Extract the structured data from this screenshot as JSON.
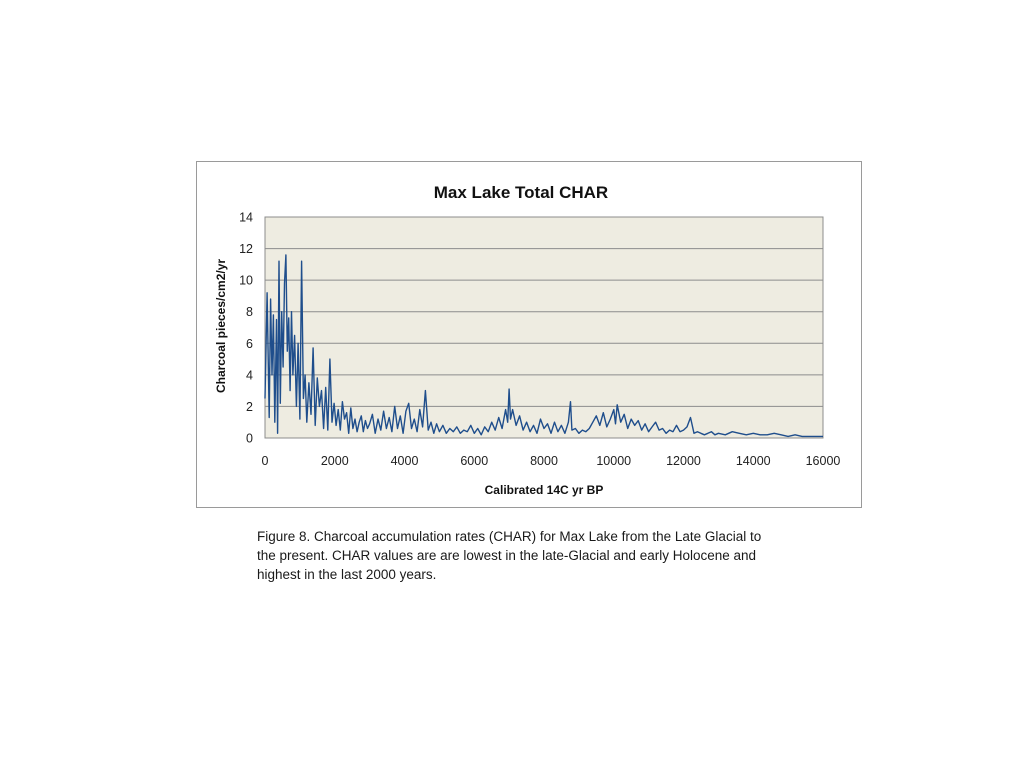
{
  "chart_data": {
    "type": "line",
    "title": "Max Lake Total CHAR",
    "xlabel": "Calibrated 14C yr BP",
    "ylabel": "Charcoal pieces/cm2/yr",
    "xlim": [
      0,
      16000
    ],
    "ylim": [
      0,
      14
    ],
    "xticks": [
      "0",
      "2000",
      "4000",
      "6000",
      "8000",
      "10000",
      "12000",
      "14000",
      "16000"
    ],
    "yticks": [
      "0",
      "2",
      "4",
      "6",
      "8",
      "10",
      "12",
      "14"
    ],
    "grid": "horizontal",
    "legend": "none",
    "colors": {
      "line": "#1f4e8c",
      "plot_bg": "#eeece1",
      "grid": "#8c8c8c"
    },
    "series": [
      {
        "x": [
          0,
          60,
          120,
          160,
          200,
          240,
          280,
          330,
          360,
          400,
          440,
          480,
          520,
          560,
          600,
          640,
          680,
          720,
          760,
          800,
          850,
          900,
          950,
          1000,
          1050,
          1100,
          1150,
          1200,
          1260,
          1320,
          1380,
          1440,
          1500,
          1560,
          1620,
          1680,
          1740,
          1800,
          1860,
          1920,
          1980,
          2040,
          2100,
          2160,
          2220,
          2280,
          2340,
          2400,
          2460,
          2520,
          2580,
          2640,
          2700,
          2760,
          2820,
          2880,
          2940,
          3000,
          3080,
          3160,
          3240,
          3320,
          3400,
          3480,
          3560,
          3640,
          3720,
          3800,
          3880,
          3960,
          4040,
          4120,
          4200,
          4280,
          4360,
          4440,
          4520,
          4600,
          4680,
          4760,
          4840,
          4920,
          5000,
          5100,
          5200,
          5300,
          5400,
          5500,
          5600,
          5700,
          5800,
          5900,
          6000,
          6100,
          6200,
          6300,
          6400,
          6500,
          6600,
          6700,
          6800,
          6900,
          6960,
          7000,
          7040,
          7100,
          7200,
          7300,
          7400,
          7500,
          7600,
          7700,
          7800,
          7900,
          8000,
          8100,
          8200,
          8300,
          8400,
          8500,
          8600,
          8700,
          8760,
          8800,
          8900,
          9000,
          9100,
          9200,
          9300,
          9400,
          9500,
          9600,
          9700,
          9800,
          9900,
          10000,
          10050,
          10100,
          10200,
          10300,
          10400,
          10500,
          10600,
          10700,
          10800,
          10900,
          11000,
          11100,
          11200,
          11300,
          11400,
          11500,
          11600,
          11700,
          11800,
          11900,
          12000,
          12100,
          12200,
          12300,
          12400,
          12500,
          12600,
          12700,
          12800,
          12900,
          13000,
          13200,
          13400,
          13600,
          13800,
          14000,
          14200,
          14400,
          14600,
          14800,
          15000,
          15200,
          15400,
          15600,
          15800,
          16000
        ],
        "values": [
          2.5,
          9.2,
          1.3,
          8.8,
          4.0,
          7.8,
          1.0,
          7.5,
          0.3,
          11.2,
          2.2,
          8.0,
          4.5,
          9.8,
          11.6,
          5.5,
          7.6,
          3.0,
          8.0,
          4.0,
          6.5,
          2.0,
          6.0,
          1.2,
          11.2,
          2.5,
          4.0,
          1.0,
          3.5,
          1.5,
          5.7,
          0.8,
          3.8,
          2.0,
          3.0,
          0.6,
          3.2,
          0.5,
          5.0,
          1.0,
          2.2,
          0.8,
          1.8,
          0.5,
          2.3,
          1.2,
          1.6,
          0.3,
          1.9,
          0.6,
          1.2,
          0.4,
          1.0,
          1.4,
          0.4,
          1.1,
          0.6,
          0.9,
          1.5,
          0.3,
          1.2,
          0.5,
          1.7,
          0.6,
          1.3,
          0.4,
          2.0,
          0.6,
          1.4,
          0.3,
          1.7,
          2.2,
          0.6,
          1.2,
          0.4,
          1.8,
          0.7,
          3.0,
          0.5,
          1.0,
          0.3,
          0.9,
          0.4,
          0.8,
          0.3,
          0.6,
          0.4,
          0.7,
          0.3,
          0.5,
          0.4,
          0.8,
          0.3,
          0.6,
          0.2,
          0.7,
          0.4,
          1.0,
          0.5,
          1.3,
          0.6,
          1.8,
          1.0,
          3.1,
          1.2,
          1.8,
          0.8,
          1.4,
          0.5,
          1.0,
          0.4,
          0.8,
          0.3,
          1.2,
          0.6,
          0.9,
          0.3,
          1.0,
          0.4,
          0.8,
          0.3,
          1.0,
          2.3,
          0.5,
          0.6,
          0.3,
          0.5,
          0.4,
          0.6,
          1.0,
          1.4,
          0.8,
          1.6,
          0.7,
          1.2,
          1.8,
          0.9,
          2.1,
          1.0,
          1.5,
          0.6,
          1.2,
          0.8,
          1.1,
          0.5,
          0.9,
          0.4,
          0.7,
          1.0,
          0.5,
          0.6,
          0.3,
          0.5,
          0.4,
          0.8,
          0.4,
          0.5,
          0.7,
          1.3,
          0.3,
          0.4,
          0.3,
          0.2,
          0.3,
          0.4,
          0.2,
          0.3,
          0.2,
          0.4,
          0.3,
          0.2,
          0.3,
          0.2,
          0.2,
          0.3,
          0.2,
          0.1,
          0.2,
          0.1,
          0.1,
          0.1,
          0.1
        ]
      }
    ]
  },
  "caption": {
    "line1": "Figure 8.  Charcoal accumulation rates (CHAR) for Max Lake from the Late Glacial  to",
    "line2": "the present. CHAR values are are lowest in the late-Glacial and early Holocene and",
    "line3": "highest in the last 2000 years."
  }
}
